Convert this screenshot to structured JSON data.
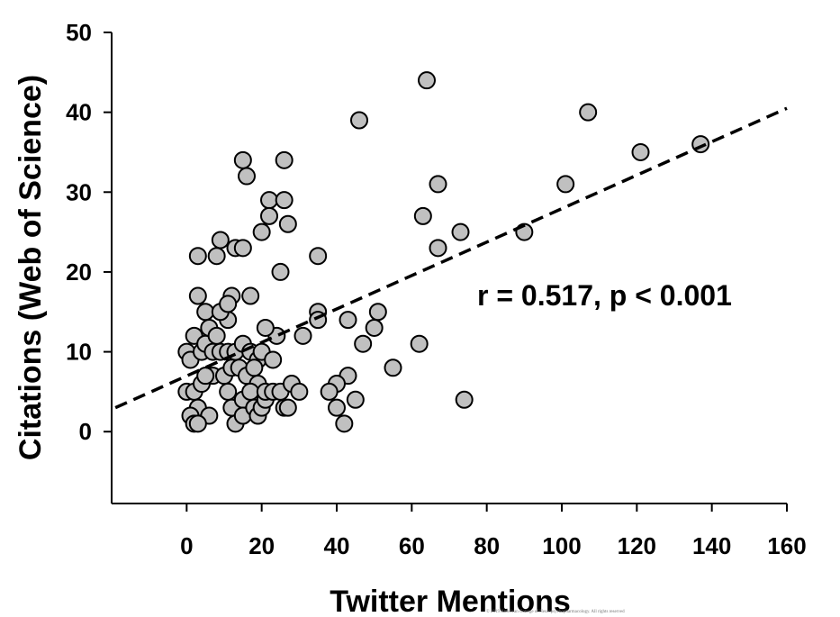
{
  "chart_data": {
    "type": "scatter",
    "xlabel": "Twitter Mentions",
    "ylabel": "Citations (Web of Science)",
    "xlim": [
      -20,
      160
    ],
    "ylim": [
      -9,
      50
    ],
    "xticks": [
      0,
      20,
      40,
      60,
      80,
      100,
      120,
      140,
      160
    ],
    "yticks": [
      0,
      10,
      20,
      30,
      40,
      50
    ],
    "grid": false,
    "annotation": "r = 0.517, p < 0.001",
    "trendline": {
      "style": "dashed",
      "x": [
        -19,
        160
      ],
      "y": [
        3,
        40.5
      ]
    },
    "marker": {
      "shape": "circle",
      "fill": "#c0c0c0",
      "stroke": "#000000"
    },
    "points": [
      [
        64,
        44
      ],
      [
        107,
        40
      ],
      [
        46,
        39
      ],
      [
        137,
        36
      ],
      [
        121,
        35
      ],
      [
        101,
        31
      ],
      [
        67,
        31
      ],
      [
        63,
        27
      ],
      [
        73,
        25
      ],
      [
        90,
        25
      ],
      [
        67,
        23
      ],
      [
        15,
        34
      ],
      [
        26,
        34
      ],
      [
        16,
        32
      ],
      [
        22,
        29
      ],
      [
        26,
        29
      ],
      [
        22,
        27
      ],
      [
        27,
        26
      ],
      [
        20,
        25
      ],
      [
        9,
        24
      ],
      [
        13,
        23
      ],
      [
        15,
        23
      ],
      [
        3,
        22
      ],
      [
        8,
        22
      ],
      [
        25,
        20
      ],
      [
        35,
        22
      ],
      [
        3,
        17
      ],
      [
        12,
        17
      ],
      [
        17,
        17
      ],
      [
        5,
        15
      ],
      [
        11,
        14
      ],
      [
        9,
        15
      ],
      [
        11,
        16
      ],
      [
        35,
        15
      ],
      [
        35,
        14
      ],
      [
        43,
        14
      ],
      [
        51,
        15
      ],
      [
        50,
        13
      ],
      [
        47,
        11
      ],
      [
        62,
        11
      ],
      [
        55,
        8
      ],
      [
        74,
        4
      ],
      [
        43,
        7
      ],
      [
        45,
        4
      ],
      [
        40,
        6
      ],
      [
        38,
        5
      ],
      [
        40,
        3
      ],
      [
        42,
        1
      ],
      [
        24,
        12
      ],
      [
        31,
        12
      ],
      [
        21,
        13
      ],
      [
        0,
        10
      ],
      [
        1,
        9
      ],
      [
        2,
        12
      ],
      [
        4,
        10
      ],
      [
        5,
        11
      ],
      [
        6,
        13
      ],
      [
        8,
        12
      ],
      [
        7,
        10
      ],
      [
        9,
        10
      ],
      [
        11,
        10
      ],
      [
        13,
        10
      ],
      [
        15,
        11
      ],
      [
        17,
        10
      ],
      [
        19,
        9
      ],
      [
        20,
        10
      ],
      [
        23,
        9
      ],
      [
        6,
        7
      ],
      [
        7,
        7
      ],
      [
        10,
        7
      ],
      [
        12,
        8
      ],
      [
        14,
        8
      ],
      [
        16,
        7
      ],
      [
        18,
        8
      ],
      [
        19,
        6
      ],
      [
        0,
        5
      ],
      [
        2,
        5
      ],
      [
        4,
        6
      ],
      [
        5,
        7
      ],
      [
        3,
        3
      ],
      [
        6,
        2
      ],
      [
        1,
        2
      ],
      [
        2,
        1
      ],
      [
        3,
        1
      ],
      [
        11,
        5
      ],
      [
        12,
        3
      ],
      [
        13,
        1
      ],
      [
        15,
        4
      ],
      [
        15,
        2
      ],
      [
        17,
        5
      ],
      [
        18,
        3
      ],
      [
        19,
        2
      ],
      [
        20,
        3
      ],
      [
        21,
        4
      ],
      [
        21,
        5
      ],
      [
        23,
        5
      ],
      [
        25,
        5
      ],
      [
        26,
        3
      ],
      [
        27,
        3
      ],
      [
        28,
        6
      ],
      [
        30,
        5
      ]
    ]
  },
  "footer": {
    "copyright": "©    2019 American College of Neuropsychopharmacology. All rights reserved"
  }
}
